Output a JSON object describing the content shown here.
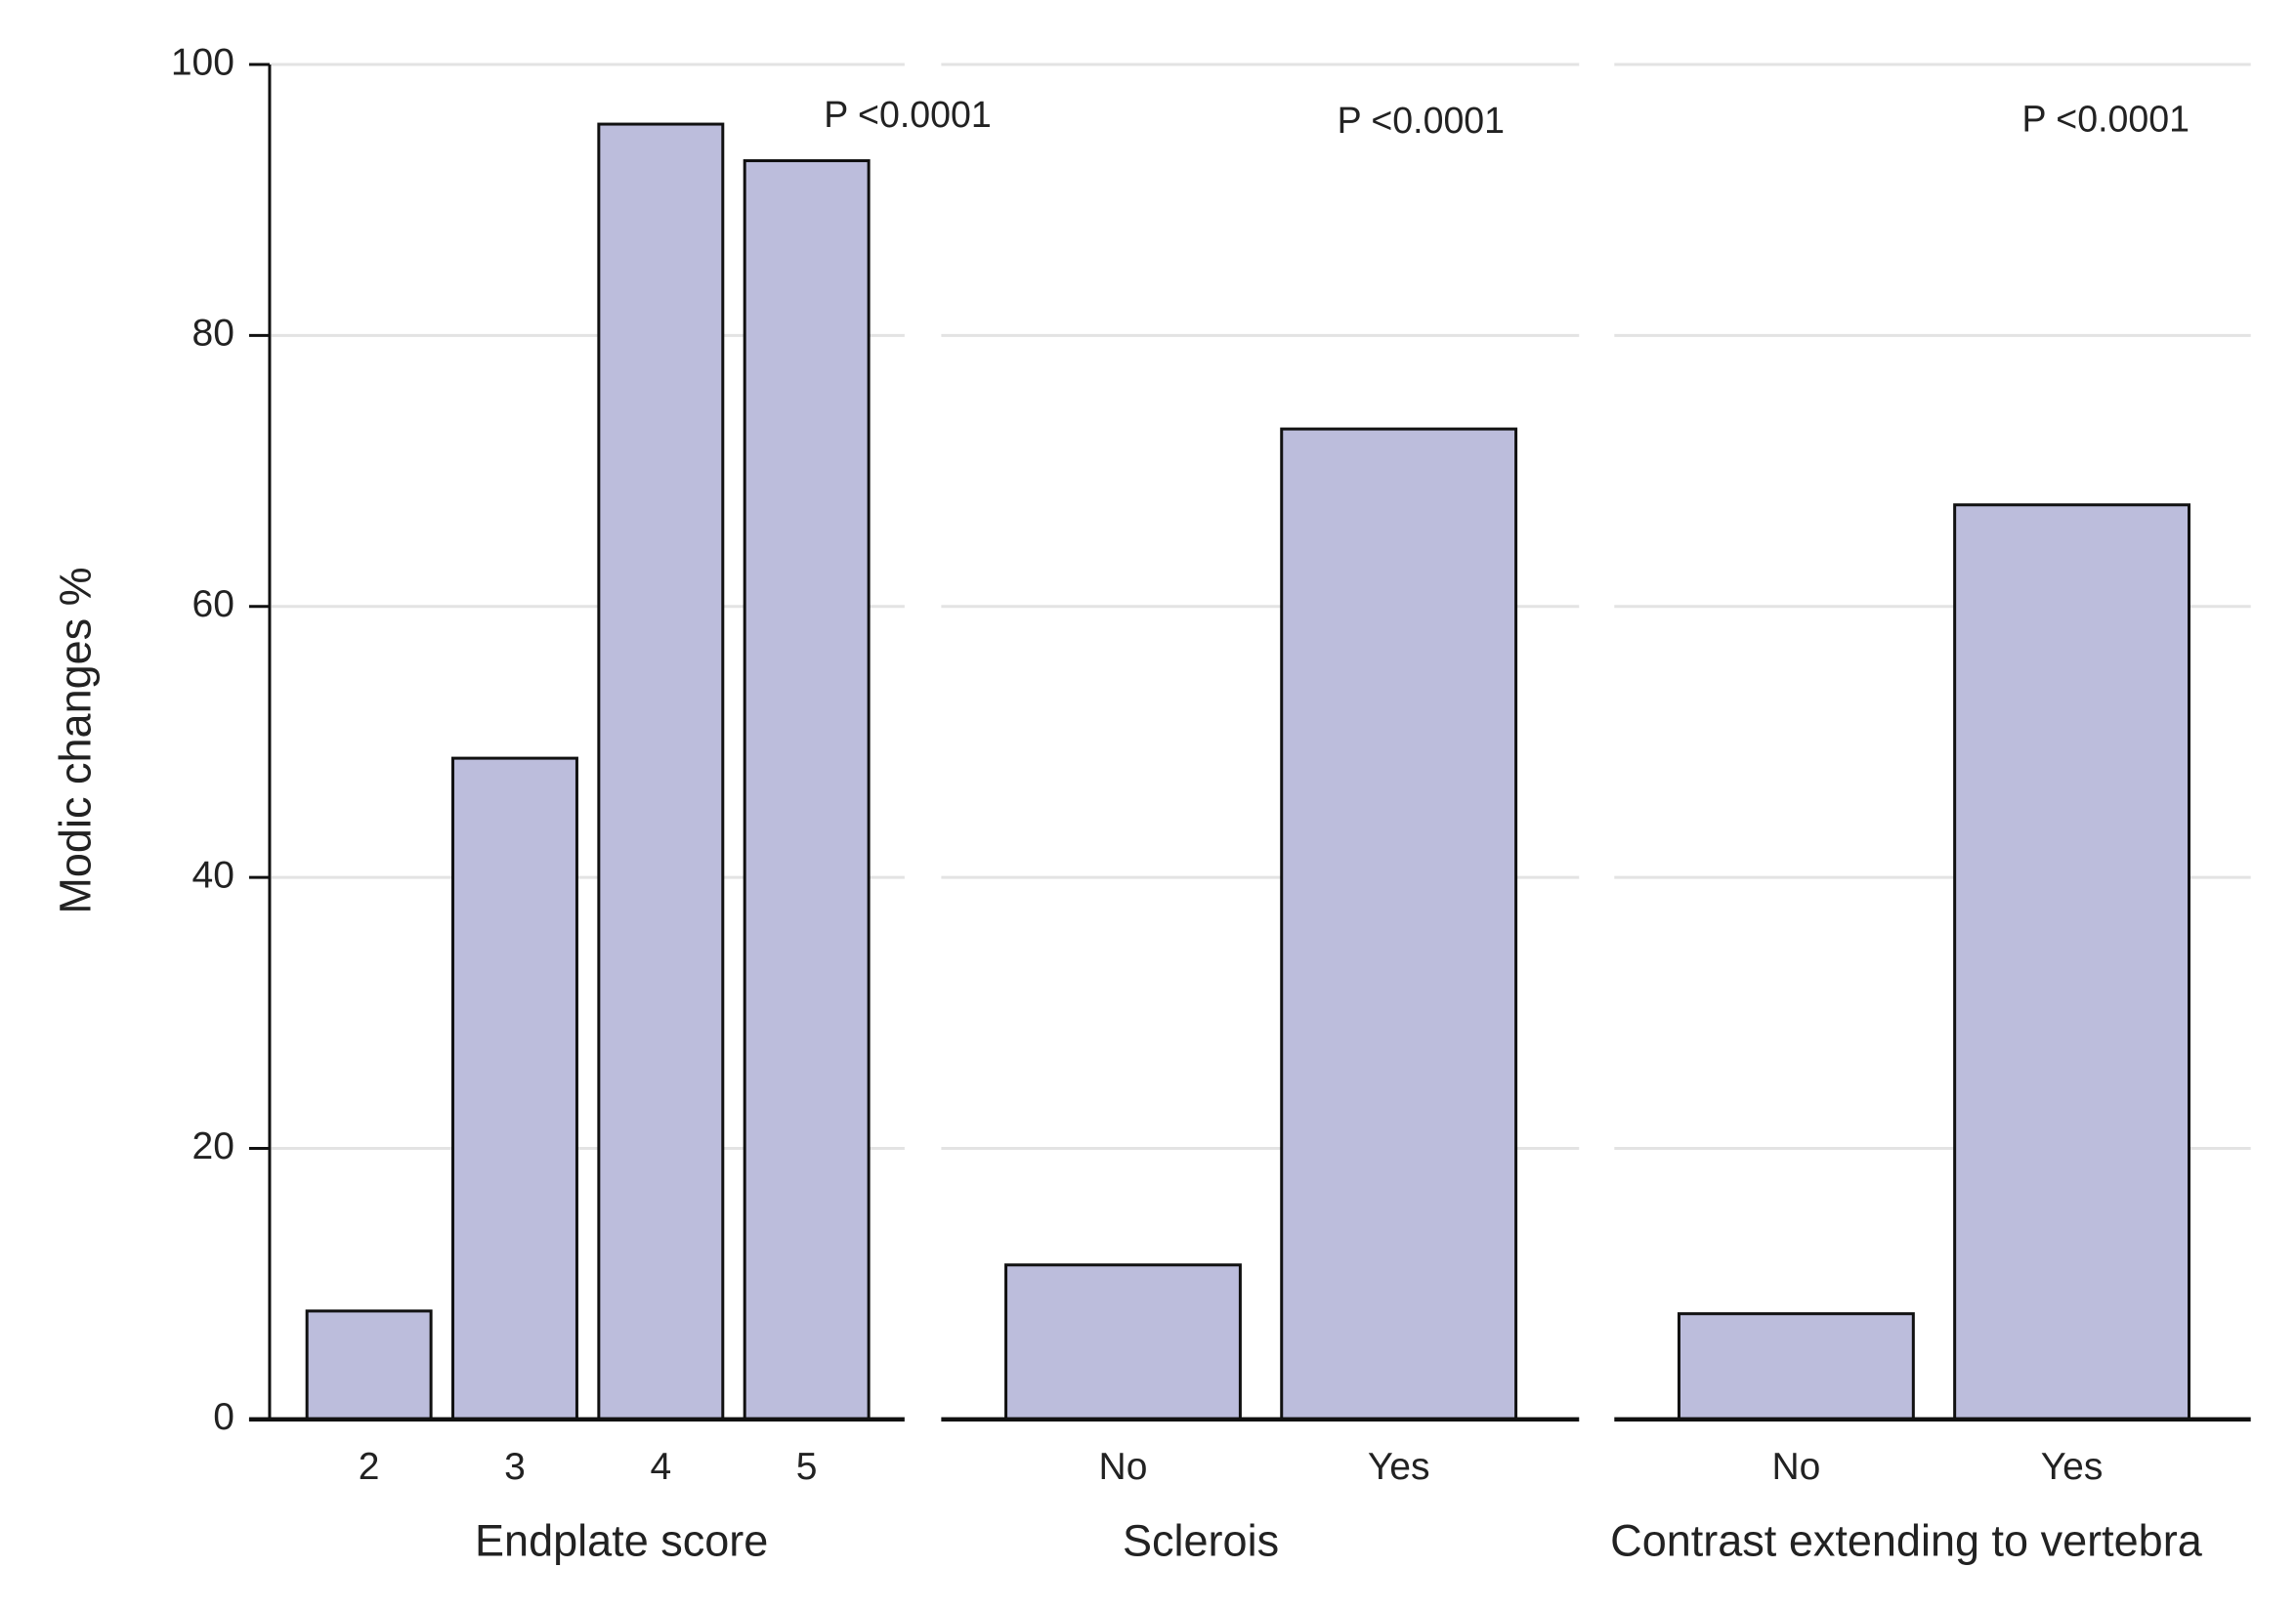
{
  "chart_data": [
    {
      "type": "bar",
      "y_label": "Modic changes %",
      "x_label": "Endplate score",
      "annotation": "P <0.0001",
      "categories": [
        "2",
        "3",
        "4",
        "5"
      ],
      "values": [
        8,
        48.8,
        95.6,
        92.9
      ],
      "color": "#bcbddc",
      "ylim": [
        0,
        100
      ],
      "yticks": [
        0,
        20,
        40,
        60,
        80,
        100
      ],
      "grid": true
    },
    {
      "type": "bar",
      "x_label": "Sclerois",
      "annotation": "P <0.0001",
      "categories": [
        "No",
        "Yes"
      ],
      "values": [
        11.4,
        73.1
      ],
      "color": "#bcbddc"
    },
    {
      "type": "bar",
      "x_label": "Contrast extending to vertebra",
      "annotation": "P <0.0001",
      "categories": [
        "No",
        "Yes"
      ],
      "values": [
        7.8,
        67.5
      ],
      "color": "#bcbddc"
    }
  ]
}
